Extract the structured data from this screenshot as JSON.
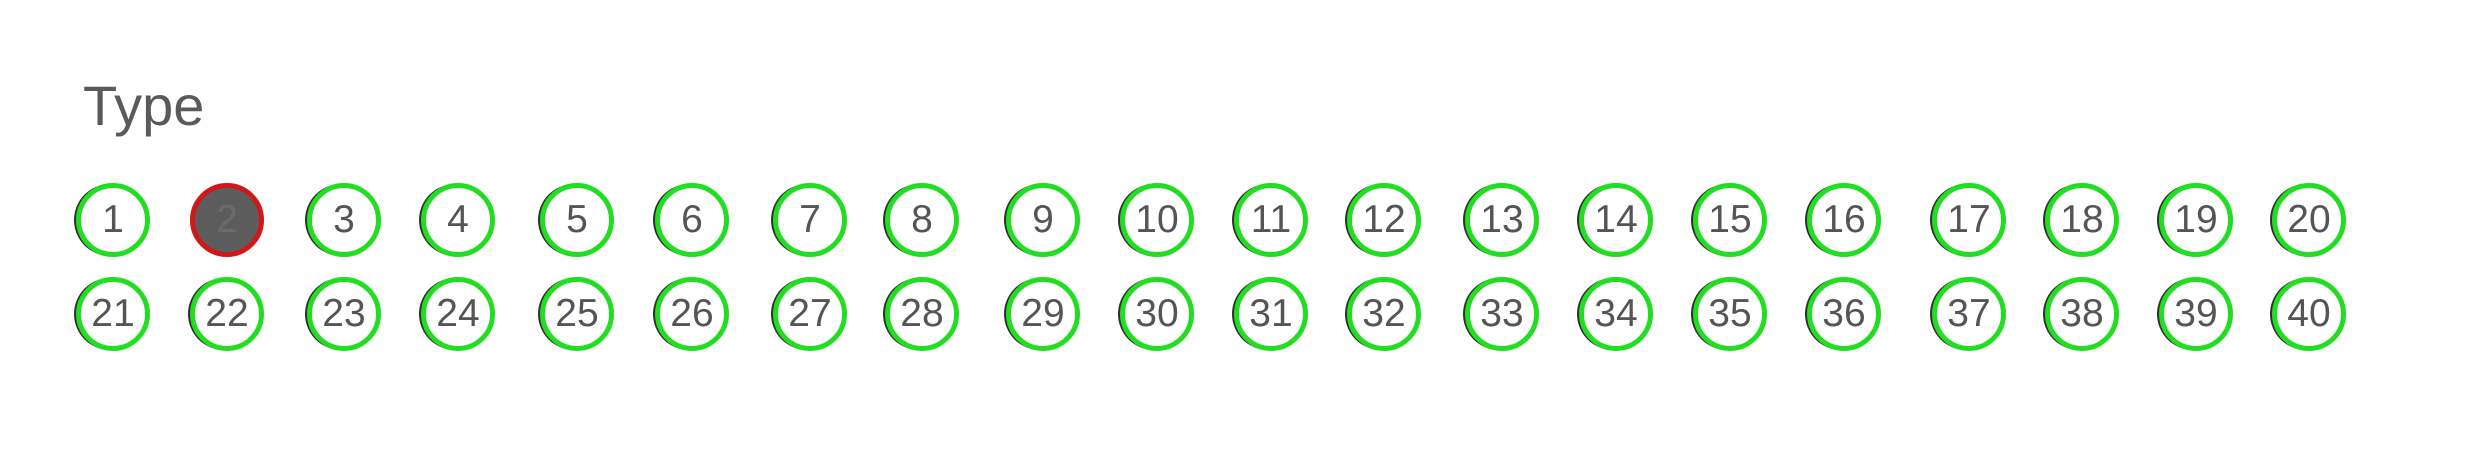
{
  "title": "Type",
  "selected_index": 2,
  "colors": {
    "ring": "#22dd22",
    "selected_ring": "#d01818",
    "selected_fill": "#5c5c5c",
    "text": "#555555"
  },
  "numbers": [
    "1",
    "2",
    "3",
    "4",
    "5",
    "6",
    "7",
    "8",
    "9",
    "10",
    "11",
    "12",
    "13",
    "14",
    "15",
    "16",
    "17",
    "18",
    "19",
    "20",
    "21",
    "22",
    "23",
    "24",
    "25",
    "26",
    "27",
    "28",
    "29",
    "30",
    "31",
    "32",
    "33",
    "34",
    "35",
    "36",
    "37",
    "38",
    "39",
    "40"
  ]
}
